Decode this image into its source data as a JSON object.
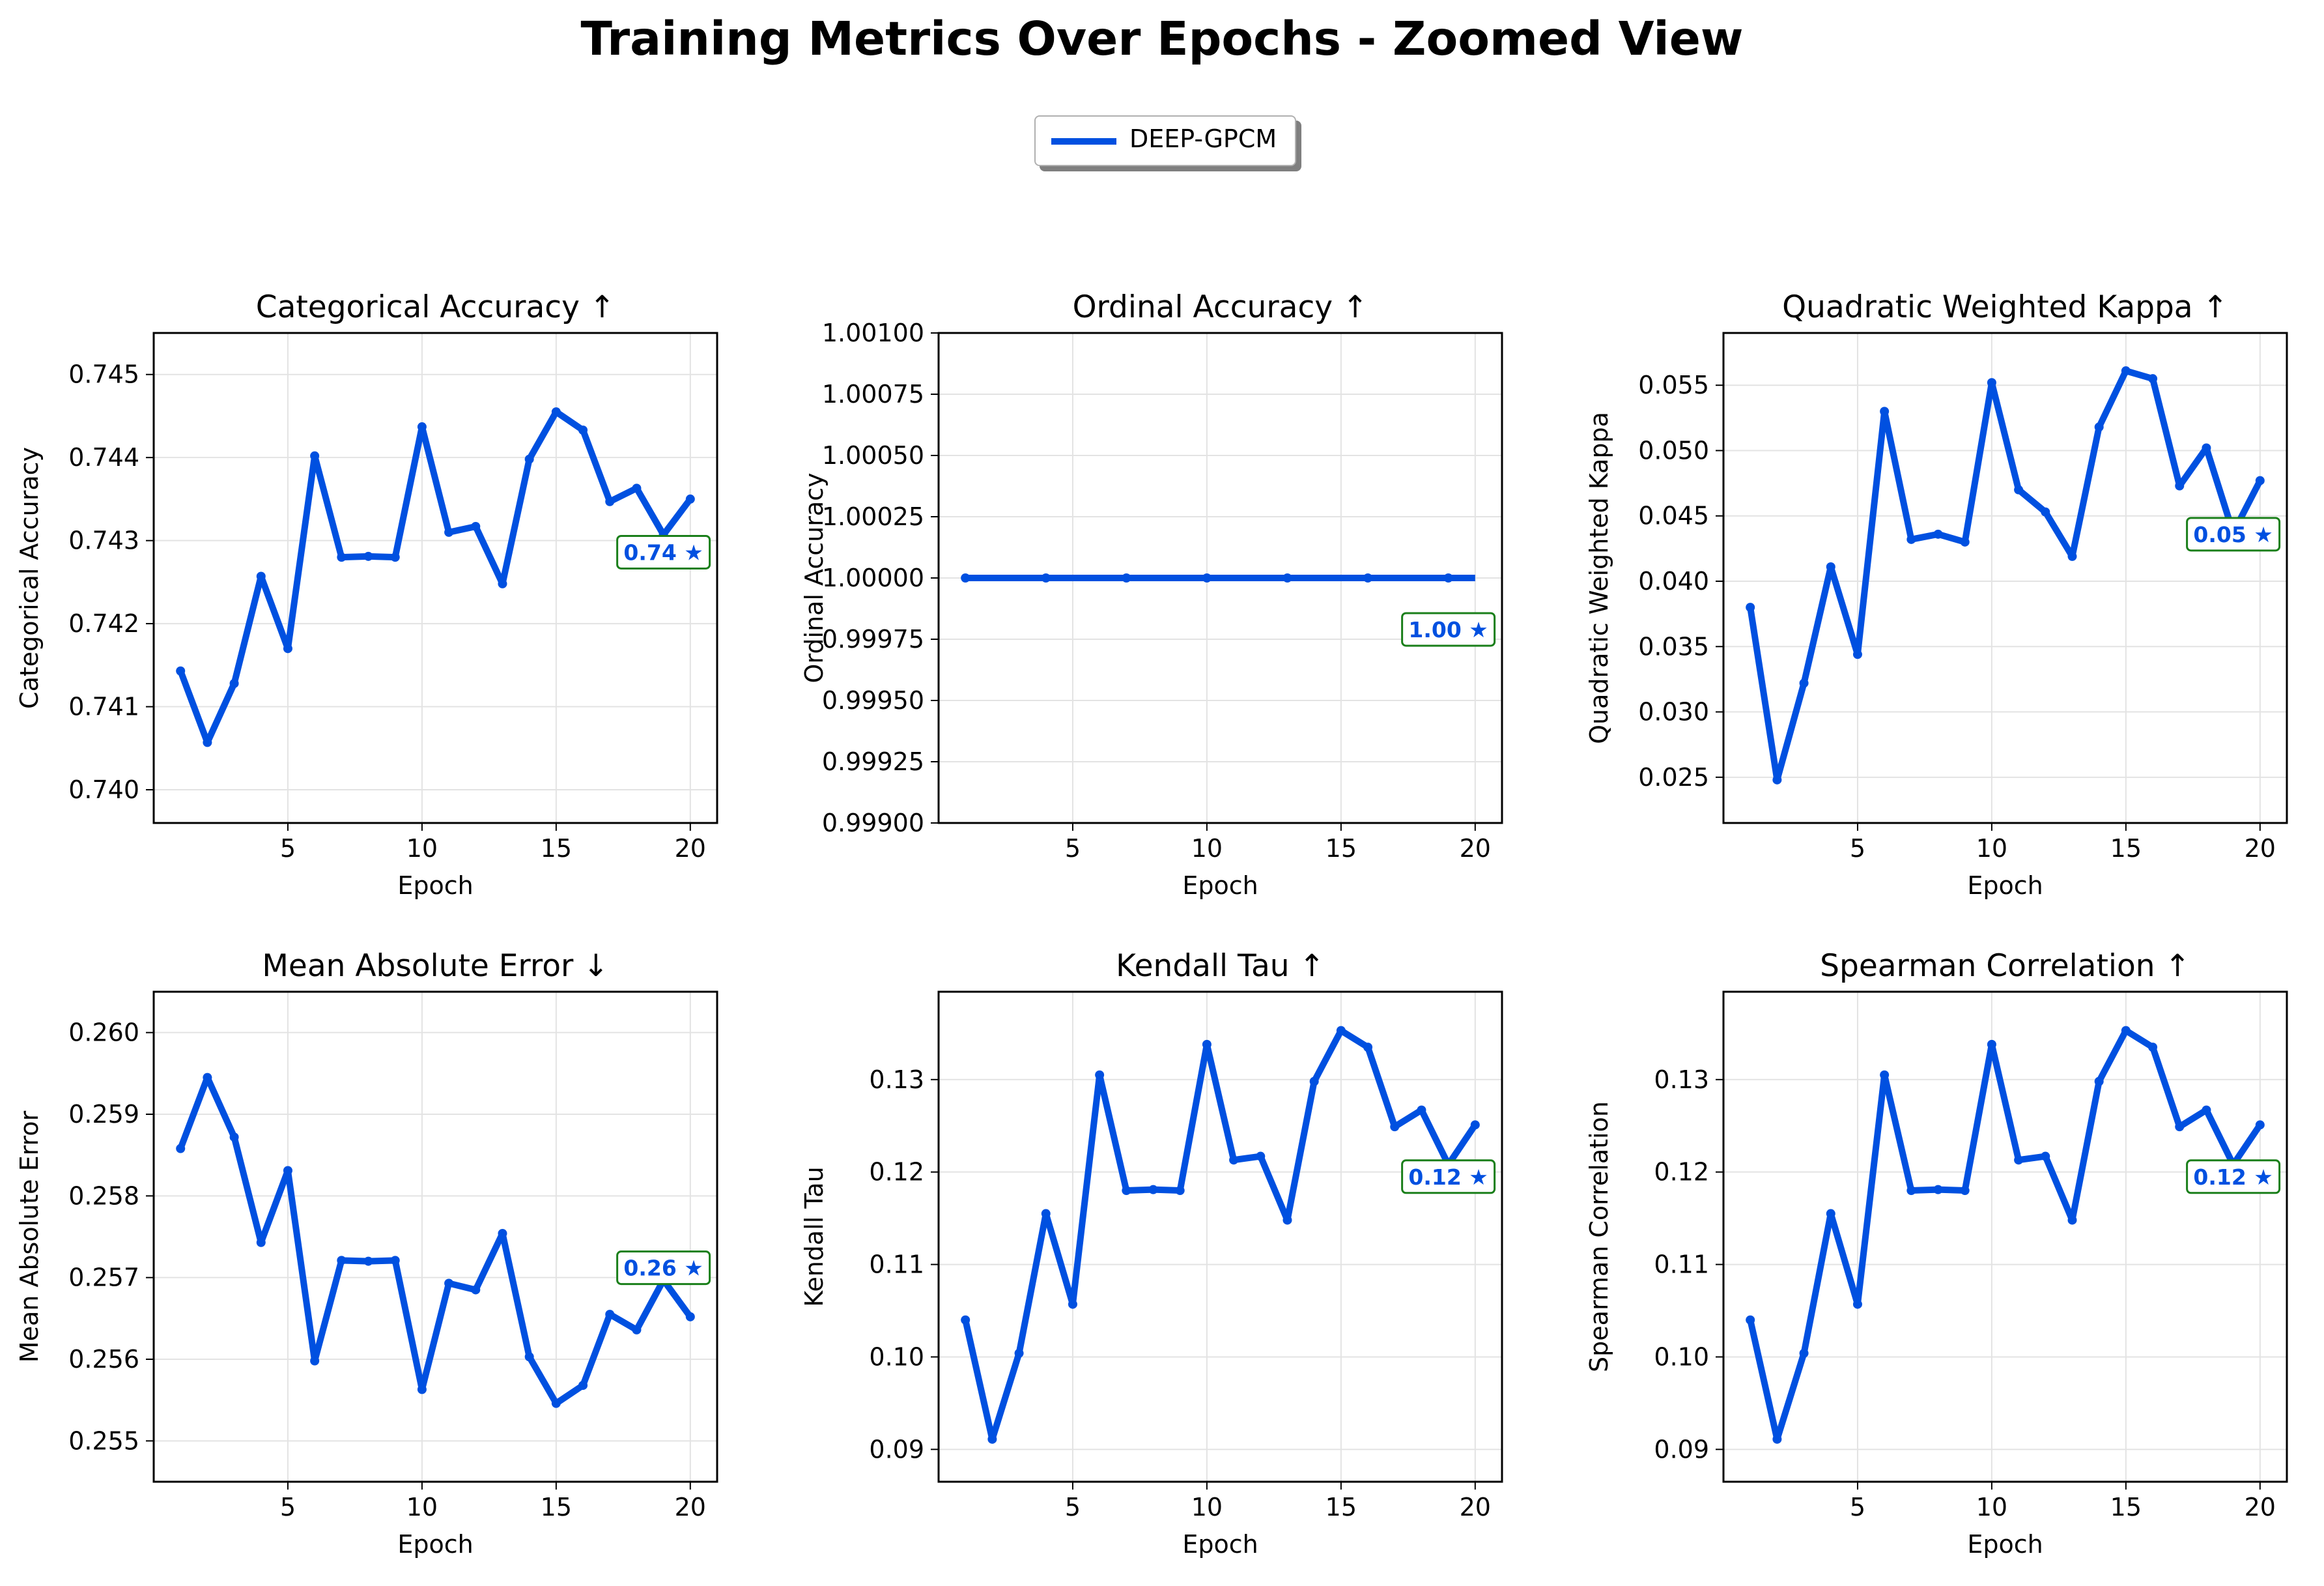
{
  "figure": {
    "title": "Training Metrics Over Epochs - Zoomed View",
    "legend": [
      {
        "label": "DEEP-GPCM",
        "color": "#0050e0"
      }
    ]
  },
  "chart_data": [
    {
      "type": "line",
      "title": "Categorical Accuracy ↑",
      "xlabel": "Epoch",
      "ylabel": "Categorical Accuracy",
      "xlim": [
        0,
        21
      ],
      "ylim": [
        0.7396,
        0.7455
      ],
      "xticks": [
        5,
        10,
        15,
        20
      ],
      "yticks": [
        0.74,
        0.741,
        0.742,
        0.743,
        0.744,
        0.745
      ],
      "ytick_labels": [
        "0.740",
        "0.741",
        "0.742",
        "0.743",
        "0.744",
        "0.745"
      ],
      "grid": true,
      "series": [
        {
          "name": "DEEP-GPCM",
          "color": "#0050e0",
          "x": [
            1,
            2,
            3,
            4,
            5,
            6,
            7,
            8,
            9,
            10,
            11,
            12,
            13,
            14,
            15,
            16,
            17,
            18,
            19,
            20
          ],
          "y": [
            0.74143,
            0.74057,
            0.74128,
            0.74257,
            0.7417,
            0.74402,
            0.7428,
            0.74281,
            0.7428,
            0.74437,
            0.7431,
            0.74317,
            0.74248,
            0.74398,
            0.74455,
            0.74433,
            0.74347,
            0.74363,
            0.74307,
            0.7435
          ]
        }
      ],
      "best": {
        "label": "0.74 ★",
        "x": 19,
        "y": 0.74286
      }
    },
    {
      "type": "line",
      "title": "Ordinal Accuracy ↑",
      "xlabel": "Epoch",
      "ylabel": "Ordinal Accuracy",
      "xlim": [
        0,
        21
      ],
      "ylim": [
        0.999,
        1.001
      ],
      "xticks": [
        5,
        10,
        15,
        20
      ],
      "yticks": [
        0.999,
        0.99925,
        0.9995,
        0.99975,
        1.0,
        1.00025,
        1.0005,
        1.00075,
        1.001
      ],
      "ytick_labels": [
        "0.99900",
        "0.99925",
        "0.99950",
        "0.99975",
        "1.00000",
        "1.00025",
        "1.00050",
        "1.00075",
        "1.00100"
      ],
      "grid": true,
      "series": [
        {
          "name": "DEEP-GPCM",
          "color": "#0050e0",
          "x": [
            1,
            2,
            3,
            4,
            5,
            6,
            7,
            8,
            9,
            10,
            11,
            12,
            13,
            14,
            15,
            16,
            17,
            18,
            19,
            20
          ],
          "y": [
            1,
            1,
            1,
            1,
            1,
            1,
            1,
            1,
            1,
            1,
            1,
            1,
            1,
            1,
            1,
            1,
            1,
            1,
            1,
            1
          ],
          "markers": [
            1,
            4,
            7,
            10,
            13,
            16,
            19
          ]
        }
      ],
      "best": {
        "label": "1.00 ★",
        "x": 19,
        "y": 0.99979
      }
    },
    {
      "type": "line",
      "title": "Quadratic Weighted Kappa ↑",
      "xlabel": "Epoch",
      "ylabel": "Quadratic Weighted Kappa",
      "xlim": [
        0,
        21
      ],
      "ylim": [
        0.0215,
        0.059
      ],
      "xticks": [
        5,
        10,
        15,
        20
      ],
      "yticks": [
        0.025,
        0.03,
        0.035,
        0.04,
        0.045,
        0.05,
        0.055
      ],
      "ytick_labels": [
        "0.025",
        "0.030",
        "0.035",
        "0.040",
        "0.045",
        "0.050",
        "0.055"
      ],
      "grid": true,
      "series": [
        {
          "name": "DEEP-GPCM",
          "color": "#0050e0",
          "x": [
            1,
            2,
            3,
            4,
            5,
            6,
            7,
            8,
            9,
            10,
            11,
            12,
            13,
            14,
            15,
            16,
            17,
            18,
            19,
            20
          ],
          "y": [
            0.038,
            0.0248,
            0.0322,
            0.0411,
            0.0344,
            0.053,
            0.0432,
            0.0436,
            0.043,
            0.0552,
            0.047,
            0.0453,
            0.0419,
            0.0518,
            0.0561,
            0.0555,
            0.0473,
            0.0502,
            0.0437,
            0.0477
          ]
        }
      ],
      "best": {
        "label": "0.05 ★",
        "x": 19,
        "y": 0.0436
      }
    },
    {
      "type": "line",
      "title": "Mean Absolute Error ↓",
      "xlabel": "Epoch",
      "ylabel": "Mean Absolute Error",
      "xlim": [
        0,
        21
      ],
      "ylim": [
        0.2545,
        0.2605
      ],
      "xticks": [
        5,
        10,
        15,
        20
      ],
      "yticks": [
        0.255,
        0.256,
        0.257,
        0.258,
        0.259,
        0.26
      ],
      "ytick_labels": [
        "0.255",
        "0.256",
        "0.257",
        "0.258",
        "0.259",
        "0.260"
      ],
      "grid": true,
      "series": [
        {
          "name": "DEEP-GPCM",
          "color": "#0050e0",
          "x": [
            1,
            2,
            3,
            4,
            5,
            6,
            7,
            8,
            9,
            10,
            11,
            12,
            13,
            14,
            15,
            16,
            17,
            18,
            19,
            20
          ],
          "y": [
            0.25858,
            0.25945,
            0.25872,
            0.25743,
            0.25831,
            0.25598,
            0.25721,
            0.2572,
            0.25721,
            0.25563,
            0.25693,
            0.25685,
            0.25754,
            0.25603,
            0.25546,
            0.25568,
            0.25655,
            0.25636,
            0.25697,
            0.25652
          ]
        }
      ],
      "best": {
        "label": "0.26 ★",
        "x": 19,
        "y": 0.25712
      }
    },
    {
      "type": "line",
      "title": "Kendall Tau ↑",
      "xlabel": "Epoch",
      "ylabel": "Kendall Tau",
      "xlim": [
        0,
        21
      ],
      "ylim": [
        0.0865,
        0.1395
      ],
      "xticks": [
        5,
        10,
        15,
        20
      ],
      "yticks": [
        0.09,
        0.1,
        0.11,
        0.12,
        0.13
      ],
      "ytick_labels": [
        "0.09",
        "0.10",
        "0.11",
        "0.12",
        "0.13"
      ],
      "grid": true,
      "series": [
        {
          "name": "DEEP-GPCM",
          "color": "#0050e0",
          "x": [
            1,
            2,
            3,
            4,
            5,
            6,
            7,
            8,
            9,
            10,
            11,
            12,
            13,
            14,
            15,
            16,
            17,
            18,
            19,
            20
          ],
          "y": [
            0.104,
            0.0911,
            0.1004,
            0.1155,
            0.1057,
            0.1305,
            0.118,
            0.1181,
            0.118,
            0.1338,
            0.1213,
            0.1217,
            0.1148,
            0.1298,
            0.1353,
            0.1335,
            0.1249,
            0.1267,
            0.1208,
            0.1251
          ]
        }
      ],
      "best": {
        "label": "0.12 ★",
        "x": 19,
        "y": 0.1195
      }
    },
    {
      "type": "line",
      "title": "Spearman Correlation ↑",
      "xlabel": "Epoch",
      "ylabel": "Spearman Correlation",
      "xlim": [
        0,
        21
      ],
      "ylim": [
        0.0865,
        0.1395
      ],
      "xticks": [
        5,
        10,
        15,
        20
      ],
      "yticks": [
        0.09,
        0.1,
        0.11,
        0.12,
        0.13
      ],
      "ytick_labels": [
        "0.09",
        "0.10",
        "0.11",
        "0.12",
        "0.13"
      ],
      "grid": true,
      "series": [
        {
          "name": "DEEP-GPCM",
          "color": "#0050e0",
          "x": [
            1,
            2,
            3,
            4,
            5,
            6,
            7,
            8,
            9,
            10,
            11,
            12,
            13,
            14,
            15,
            16,
            17,
            18,
            19,
            20
          ],
          "y": [
            0.104,
            0.0911,
            0.1004,
            0.1155,
            0.1057,
            0.1305,
            0.118,
            0.1181,
            0.118,
            0.1338,
            0.1213,
            0.1217,
            0.1148,
            0.1298,
            0.1353,
            0.1335,
            0.1249,
            0.1267,
            0.1208,
            0.1251
          ]
        }
      ],
      "best": {
        "label": "0.12 ★",
        "x": 19,
        "y": 0.1195
      }
    }
  ]
}
